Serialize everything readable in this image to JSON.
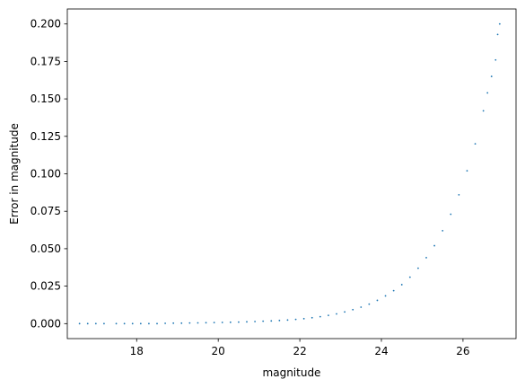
{
  "chart_data": {
    "type": "scatter",
    "xlabel": "magnitude",
    "ylabel": "Error in magnitude",
    "xlim": [
      16.3,
      27.3
    ],
    "ylim": [
      -0.01,
      0.21
    ],
    "xticks": [
      18,
      20,
      22,
      24,
      26
    ],
    "xtick_labels": [
      "18",
      "20",
      "22",
      "24",
      "26"
    ],
    "yticks": [
      0.0,
      0.025,
      0.05,
      0.075,
      0.1,
      0.125,
      0.15,
      0.175,
      0.2
    ],
    "ytick_labels": [
      "0.000",
      "0.025",
      "0.050",
      "0.075",
      "0.100",
      "0.125",
      "0.150",
      "0.175",
      "0.200"
    ],
    "grid": false,
    "marker_color": "#1f77b4",
    "series": [
      {
        "x": [
          16.6,
          16.8,
          17.0,
          17.2,
          17.5,
          17.7,
          17.9,
          18.1,
          18.3,
          18.5,
          18.7,
          18.9,
          19.1,
          19.3,
          19.5,
          19.7,
          19.9,
          20.1,
          20.3,
          20.5,
          20.7,
          20.9,
          21.1,
          21.3,
          21.5,
          21.7,
          21.9,
          22.1,
          22.3,
          22.5,
          22.7,
          22.9,
          23.1,
          23.3,
          23.5,
          23.7,
          23.9,
          24.1,
          24.3,
          24.5,
          24.7,
          24.9,
          25.1,
          25.3,
          25.5,
          25.7,
          25.9,
          26.1,
          26.3,
          26.5,
          26.6,
          26.7,
          26.8,
          26.85,
          26.9
        ],
        "y": [
          0.0,
          0.0,
          0.0,
          0.0,
          0.0,
          0.0,
          0.0,
          0.0,
          0.0,
          0.0,
          0.0002,
          0.0003,
          0.0003,
          0.0004,
          0.0005,
          0.0006,
          0.0007,
          0.0008,
          0.0009,
          0.001,
          0.0012,
          0.0014,
          0.0016,
          0.0018,
          0.0021,
          0.0024,
          0.0028,
          0.0033,
          0.0039,
          0.0046,
          0.0055,
          0.0065,
          0.0078,
          0.0093,
          0.011,
          0.013,
          0.0155,
          0.0185,
          0.022,
          0.026,
          0.031,
          0.037,
          0.044,
          0.052,
          0.062,
          0.073,
          0.086,
          0.102,
          0.12,
          0.142,
          0.154,
          0.165,
          0.176,
          0.193,
          0.2
        ]
      }
    ]
  }
}
